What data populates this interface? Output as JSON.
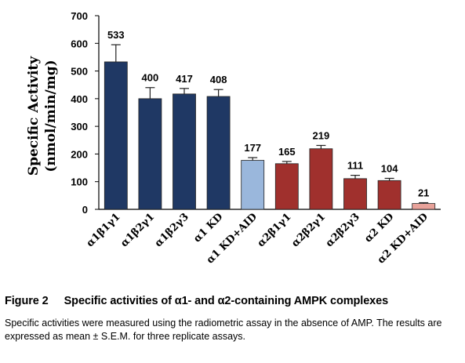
{
  "chart_data": {
    "type": "bar",
    "ylabel_lines": [
      "Specific Activity",
      "(nmol/min/mg)"
    ],
    "ylim": [
      0,
      700
    ],
    "yticks": [
      "0",
      "100",
      "200",
      "300",
      "400",
      "500",
      "600",
      "700"
    ],
    "grid": false,
    "legend": false,
    "categories": [
      "α1β1γ1",
      "α1β2γ1",
      "α1β2γ3",
      "α1 KD",
      "α1 KD+AID",
      "α2β1γ1",
      "α2β2γ1",
      "α2β2γ3",
      "α2 KD",
      "α2 KD+AID"
    ],
    "values": [
      533,
      400,
      417,
      408,
      177,
      165,
      219,
      111,
      104,
      21
    ],
    "value_labels": [
      "533",
      "400",
      "417",
      "408",
      "177",
      "165",
      "219",
      "111",
      "104",
      "21"
    ],
    "errors": [
      62,
      40,
      20,
      25,
      10,
      8,
      12,
      12,
      8,
      3
    ],
    "bar_colors": [
      "#1f3864",
      "#1f3864",
      "#1f3864",
      "#1f3864",
      "#9ab7dc",
      "#a0302d",
      "#a0302d",
      "#a0302d",
      "#a0302d",
      "#e8a29a"
    ]
  },
  "caption": {
    "figure_number": "Figure 2",
    "title": "Specific activities of α1- and α2-containing AMPK complexes",
    "description": "Specific activities were measured using the radiometric assay in the absence of AMP. The results are expressed as mean ± S.E.M. for three replicate assays."
  }
}
